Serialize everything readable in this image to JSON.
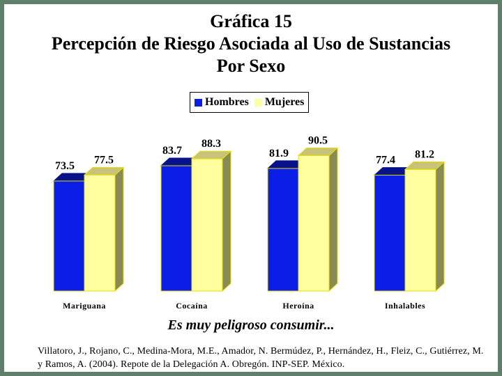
{
  "title_lines": [
    "Gráfica 15",
    "Percepción de Riesgo Asociada al Uso de Sustancias",
    "Por Sexo"
  ],
  "tagline": "Es muy peligroso consumir...",
  "source": "Villatoro, J., Rojano, C., Medina-Mora, M.E., Amador, N. Bermúdez, P., Hernández, H., Fleiz, C., Gutiérrez, M. y Ramos, A. (2004). Repote de la Delegación A. Obregón. INP-SEP. México.",
  "colors": {
    "hombres_front": "#0a1ee6",
    "hombres_top": "#08128a",
    "mujeres_front": "#ffffa0",
    "mujeres_top": "#c8c27a",
    "side": "#8a8a55",
    "edge": "#e6e000"
  },
  "chart_data": {
    "type": "bar",
    "categories": [
      "Mariguana",
      "Cocaína",
      "Heroína",
      "Inhalables"
    ],
    "series": [
      {
        "name": "Hombres",
        "values": [
          73.5,
          83.7,
          81.9,
          77.4
        ]
      },
      {
        "name": "Mujeres",
        "values": [
          77.5,
          88.3,
          90.5,
          81.2
        ]
      }
    ],
    "title": "Gráfica 15 Percepción de Riesgo Asociada al Uso de Sustancias Por Sexo",
    "legend": "top",
    "ylim": [
      0,
      100
    ],
    "grid": false
  }
}
